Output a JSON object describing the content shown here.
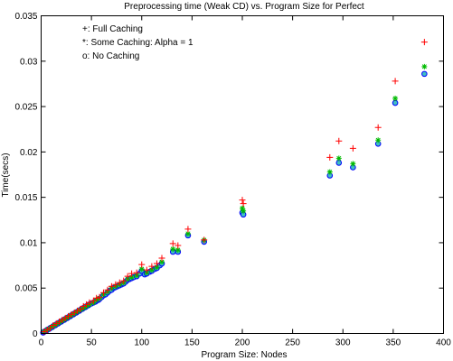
{
  "chart_data": {
    "type": "scatter",
    "title": "Preprocessing time (Weak CD) vs. Program Size for Perfect",
    "xlabel": "Program Size: Nodes",
    "ylabel": "Time(secs)",
    "xlim": [
      0,
      400
    ],
    "ylim": [
      0,
      0.035
    ],
    "x_ticks": [
      "0",
      "50",
      "100",
      "150",
      "200",
      "250",
      "300",
      "350",
      "400"
    ],
    "y_ticks": [
      "0",
      "0.005",
      "0.01",
      "0.015",
      "0.02",
      "0.025",
      "0.03",
      "0.035"
    ],
    "grid": false,
    "legend_position": "top-left",
    "legend": [
      "+: Full Caching",
      "*: Some Caching: Alpha = 1",
      "o: No Caching"
    ],
    "colors": {
      "full": "#ff0000",
      "some": "#00bb00",
      "none": "#0000ff",
      "fill": "#40c0c0"
    },
    "series": [
      {
        "marker": "plus",
        "color": "#ff0000",
        "points": [
          [
            3,
            0.0002
          ],
          [
            6,
            0.0004
          ],
          [
            9,
            0.0006
          ],
          [
            12,
            0.0009
          ],
          [
            15,
            0.0011
          ],
          [
            18,
            0.0013
          ],
          [
            21,
            0.0015
          ],
          [
            24,
            0.0017
          ],
          [
            27,
            0.0019
          ],
          [
            30,
            0.0021
          ],
          [
            33,
            0.0023
          ],
          [
            36,
            0.0025
          ],
          [
            39,
            0.0027
          ],
          [
            42,
            0.003
          ],
          [
            45,
            0.0032
          ],
          [
            48,
            0.0034
          ],
          [
            52,
            0.0036
          ],
          [
            55,
            0.0039
          ],
          [
            58,
            0.004
          ],
          [
            62,
            0.0045
          ],
          [
            66,
            0.0048
          ],
          [
            70,
            0.0052
          ],
          [
            74,
            0.0054
          ],
          [
            78,
            0.0056
          ],
          [
            82,
            0.0058
          ],
          [
            86,
            0.0063
          ],
          [
            90,
            0.0066
          ],
          [
            95,
            0.0067
          ],
          [
            100,
            0.0076
          ],
          [
            105,
            0.007
          ],
          [
            110,
            0.0074
          ],
          [
            115,
            0.0077
          ],
          [
            120,
            0.0083
          ],
          [
            131,
            0.0099
          ],
          [
            136,
            0.0097
          ],
          [
            146,
            0.0115
          ],
          [
            162,
            0.0103
          ],
          [
            200,
            0.0147
          ],
          [
            201,
            0.0143
          ],
          [
            287,
            0.0194
          ],
          [
            296,
            0.0212
          ],
          [
            310,
            0.0204
          ],
          [
            335,
            0.0227
          ],
          [
            352,
            0.0278
          ],
          [
            381,
            0.0321
          ]
        ]
      },
      {
        "marker": "star",
        "color": "#00bb00",
        "points": [
          [
            3,
            0.0002
          ],
          [
            6,
            0.0004
          ],
          [
            9,
            0.0006
          ],
          [
            12,
            0.0008
          ],
          [
            15,
            0.001
          ],
          [
            18,
            0.0012
          ],
          [
            21,
            0.0014
          ],
          [
            24,
            0.0016
          ],
          [
            27,
            0.0018
          ],
          [
            30,
            0.002
          ],
          [
            33,
            0.0022
          ],
          [
            36,
            0.0024
          ],
          [
            39,
            0.0026
          ],
          [
            42,
            0.0028
          ],
          [
            45,
            0.003
          ],
          [
            48,
            0.0032
          ],
          [
            52,
            0.0034
          ],
          [
            55,
            0.0037
          ],
          [
            58,
            0.0039
          ],
          [
            62,
            0.0043
          ],
          [
            66,
            0.0046
          ],
          [
            70,
            0.005
          ],
          [
            74,
            0.0052
          ],
          [
            78,
            0.0054
          ],
          [
            82,
            0.0056
          ],
          [
            86,
            0.006
          ],
          [
            90,
            0.0062
          ],
          [
            95,
            0.0064
          ],
          [
            100,
            0.0071
          ],
          [
            105,
            0.0067
          ],
          [
            110,
            0.007
          ],
          [
            115,
            0.0073
          ],
          [
            120,
            0.0079
          ],
          [
            131,
            0.0093
          ],
          [
            136,
            0.0092
          ],
          [
            146,
            0.011
          ],
          [
            162,
            0.0103
          ],
          [
            200,
            0.0138
          ],
          [
            201,
            0.0135
          ],
          [
            287,
            0.0178
          ],
          [
            296,
            0.0193
          ],
          [
            310,
            0.0187
          ],
          [
            335,
            0.0213
          ],
          [
            352,
            0.0259
          ],
          [
            381,
            0.0294
          ]
        ]
      },
      {
        "marker": "circle",
        "color": "#0000ff",
        "points": [
          [
            2,
            0.0001
          ],
          [
            3,
            0.0002
          ],
          [
            5,
            0.0003
          ],
          [
            6,
            0.0004
          ],
          [
            8,
            0.0005
          ],
          [
            9,
            0.0006
          ],
          [
            11,
            0.0007
          ],
          [
            12,
            0.0008
          ],
          [
            14,
            0.0009
          ],
          [
            15,
            0.001
          ],
          [
            17,
            0.0011
          ],
          [
            18,
            0.0012
          ],
          [
            20,
            0.0013
          ],
          [
            21,
            0.0014
          ],
          [
            23,
            0.0015
          ],
          [
            24,
            0.0016
          ],
          [
            26,
            0.0017
          ],
          [
            27,
            0.0018
          ],
          [
            29,
            0.0019
          ],
          [
            30,
            0.002
          ],
          [
            32,
            0.0021
          ],
          [
            33,
            0.0022
          ],
          [
            35,
            0.0023
          ],
          [
            36,
            0.0024
          ],
          [
            38,
            0.0025
          ],
          [
            39,
            0.0026
          ],
          [
            41,
            0.0027
          ],
          [
            42,
            0.0028
          ],
          [
            44,
            0.0029
          ],
          [
            45,
            0.003
          ],
          [
            47,
            0.0031
          ],
          [
            48,
            0.0032
          ],
          [
            50,
            0.0033
          ],
          [
            52,
            0.0034
          ],
          [
            54,
            0.0035
          ],
          [
            55,
            0.0036
          ],
          [
            57,
            0.0037
          ],
          [
            58,
            0.0038
          ],
          [
            60,
            0.004
          ],
          [
            62,
            0.0042
          ],
          [
            64,
            0.0043
          ],
          [
            66,
            0.0045
          ],
          [
            68,
            0.0047
          ],
          [
            70,
            0.0048
          ],
          [
            72,
            0.005
          ],
          [
            74,
            0.0051
          ],
          [
            76,
            0.0052
          ],
          [
            78,
            0.0053
          ],
          [
            80,
            0.0054
          ],
          [
            82,
            0.0055
          ],
          [
            84,
            0.0057
          ],
          [
            86,
            0.0059
          ],
          [
            88,
            0.006
          ],
          [
            90,
            0.0061
          ],
          [
            92,
            0.0062
          ],
          [
            95,
            0.0063
          ],
          [
            98,
            0.0066
          ],
          [
            100,
            0.0069
          ],
          [
            103,
            0.0065
          ],
          [
            105,
            0.0066
          ],
          [
            108,
            0.0068
          ],
          [
            110,
            0.0069
          ],
          [
            113,
            0.0071
          ],
          [
            115,
            0.0072
          ],
          [
            118,
            0.0075
          ],
          [
            120,
            0.0077
          ],
          [
            131,
            0.009
          ],
          [
            136,
            0.009
          ],
          [
            146,
            0.0108
          ],
          [
            162,
            0.0101
          ],
          [
            200,
            0.0133
          ],
          [
            201,
            0.0131
          ],
          [
            287,
            0.0174
          ],
          [
            296,
            0.0188
          ],
          [
            310,
            0.0183
          ],
          [
            335,
            0.0209
          ],
          [
            352,
            0.0254
          ],
          [
            381,
            0.0286
          ]
        ]
      }
    ]
  }
}
